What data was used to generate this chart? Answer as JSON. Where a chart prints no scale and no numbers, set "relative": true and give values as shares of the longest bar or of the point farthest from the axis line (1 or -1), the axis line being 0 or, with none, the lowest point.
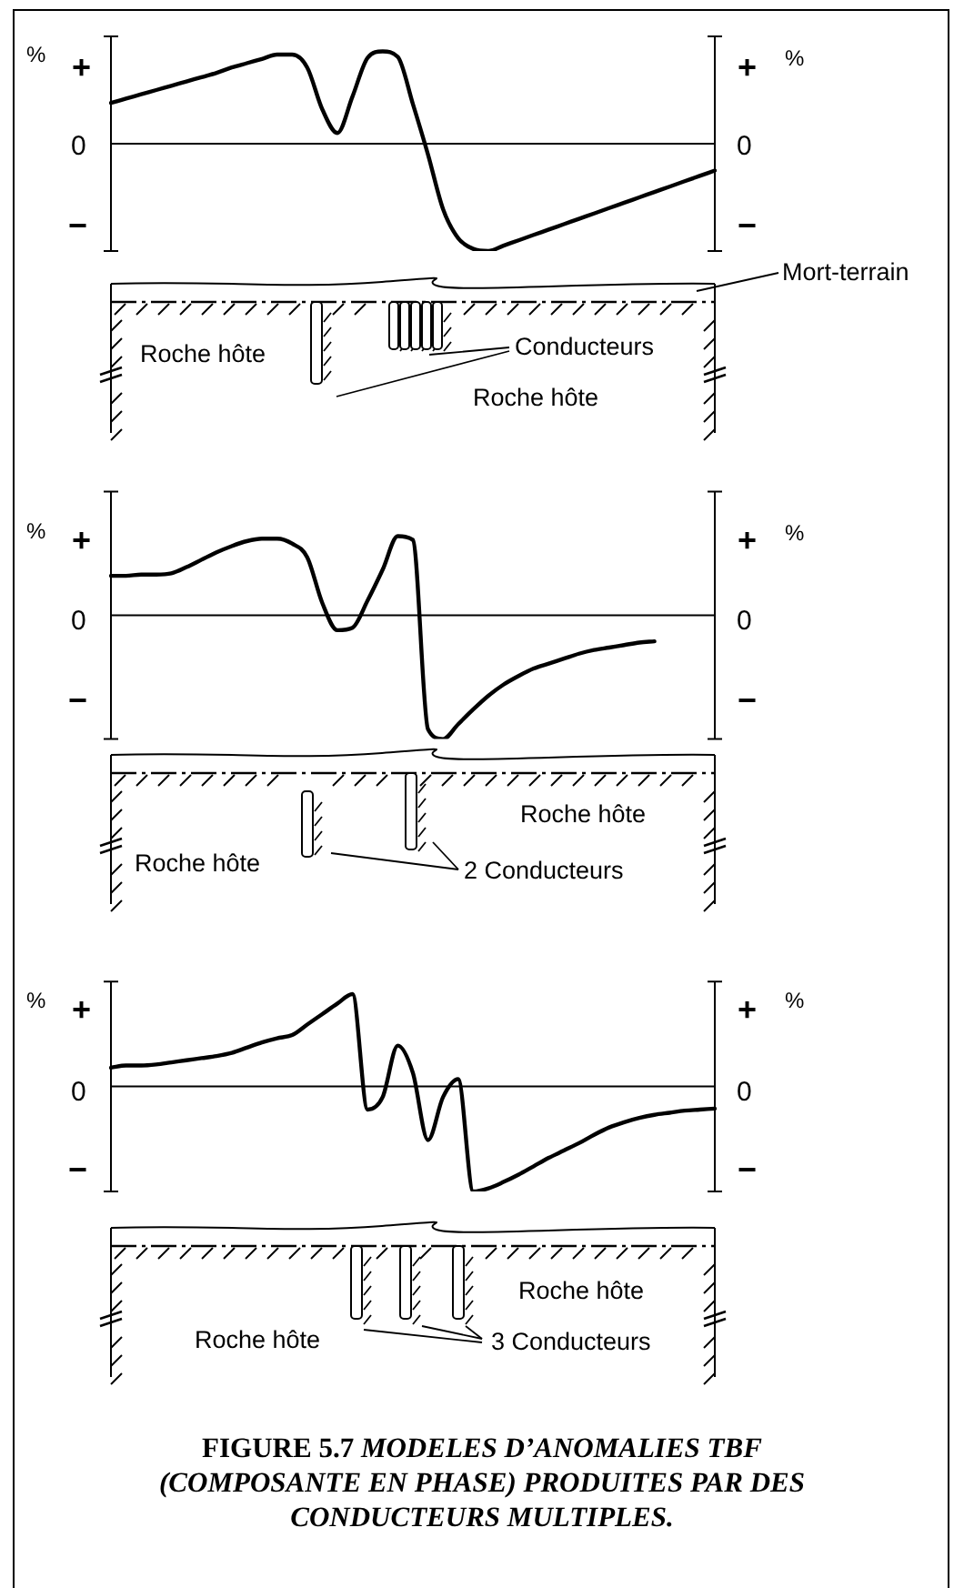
{
  "chart_data": [
    {
      "type": "line",
      "relative": true,
      "color": "#000000",
      "ylabel": "%",
      "y2label": "%",
      "categories": [
        null,
        null,
        null,
        null,
        null,
        null,
        null,
        null,
        null,
        null,
        null,
        null,
        null,
        null,
        null,
        null,
        null,
        null,
        null,
        null,
        null,
        null,
        null,
        null,
        null,
        null,
        null,
        null,
        null,
        null,
        null,
        null,
        null,
        null,
        null,
        null,
        null,
        null,
        null,
        null,
        null
      ],
      "values": [
        0.38,
        0.42,
        0.46,
        0.5,
        0.54,
        0.58,
        0.62,
        0.66,
        0.71,
        0.75,
        0.79,
        0.83,
        0.83,
        0.71,
        0.32,
        0.1,
        0.44,
        0.8,
        0.86,
        0.81,
        0.37,
        -0.1,
        -0.61,
        -0.88,
        -0.98,
        -1,
        -0.95,
        -0.9,
        -0.85,
        -0.8,
        -0.75,
        -0.7,
        -0.65,
        -0.6,
        -0.55,
        -0.5,
        -0.45,
        -0.4,
        -0.35,
        -0.3,
        -0.25
      ],
      "annotations": [
        "+",
        "0",
        "−",
        "+",
        "0",
        "−",
        "Mort-terrain",
        "Roche hôte",
        "Conducteurs",
        "Roche hôte"
      ]
    },
    {
      "type": "line",
      "relative": true,
      "color": "#000000",
      "ylabel": "%",
      "y2label": "%",
      "categories": [
        null,
        null,
        null,
        null,
        null,
        null,
        null,
        null,
        null,
        null,
        null,
        null,
        null,
        null,
        null,
        null,
        null,
        null,
        null,
        null,
        null,
        null,
        null,
        null,
        null,
        null,
        null,
        null,
        null,
        null,
        null,
        null,
        null,
        null,
        null,
        null,
        null,
        null,
        null,
        null,
        null
      ],
      "values": [
        0.32,
        0.32,
        0.33,
        0.33,
        0.34,
        0.39,
        0.45,
        0.51,
        0.56,
        0.6,
        0.62,
        0.62,
        0.58,
        0.47,
        0.1,
        -0.12,
        -0.1,
        0.12,
        0.37,
        0.64,
        0.61,
        -0.92,
        -1,
        -0.88,
        -0.76,
        -0.65,
        -0.56,
        -0.49,
        -0.43,
        -0.39,
        -0.35,
        -0.31,
        -0.28,
        -0.26,
        -0.24,
        -0.22,
        -0.21,
        null,
        null,
        null,
        null
      ],
      "annotations": [
        "+",
        "0",
        "−",
        "+",
        "0",
        "−",
        "Roche hôte",
        "Roche hôte",
        "2 Conducteurs"
      ]
    },
    {
      "type": "line",
      "relative": true,
      "color": "#000000",
      "ylabel": "%",
      "y2label": "%",
      "categories": [
        null,
        null,
        null,
        null,
        null,
        null,
        null,
        null,
        null,
        null,
        null,
        null,
        null,
        null,
        null,
        null,
        null,
        null,
        null,
        null,
        null,
        null,
        null,
        null,
        null,
        null,
        null,
        null,
        null,
        null,
        null,
        null,
        null,
        null,
        null,
        null,
        null,
        null,
        null,
        null,
        null
      ],
      "values": [
        0.18,
        0.2,
        0.2,
        0.21,
        0.23,
        0.25,
        0.27,
        0.29,
        0.32,
        0.37,
        0.42,
        0.46,
        0.49,
        0.59,
        0.69,
        0.79,
        0.88,
        -0.22,
        -0.1,
        0.39,
        0.13,
        -0.51,
        -0.1,
        0.07,
        -1,
        -0.97,
        -0.91,
        -0.84,
        -0.76,
        -0.68,
        -0.61,
        -0.54,
        -0.46,
        -0.39,
        -0.34,
        -0.3,
        -0.27,
        -0.25,
        -0.23,
        -0.22,
        -0.21
      ],
      "annotations": [
        "+",
        "0",
        "−",
        "+",
        "0",
        "−",
        "Roche hôte",
        "Roche hôte",
        "3 Conducteurs",
        "FIGURE 5.7",
        "MODELES D’ANOMALIES TBF (COMPOSANTE EN PHASE) PRODUITES PAR DES CONDUCTEURS MULTIPLES."
      ]
    }
  ]
}
